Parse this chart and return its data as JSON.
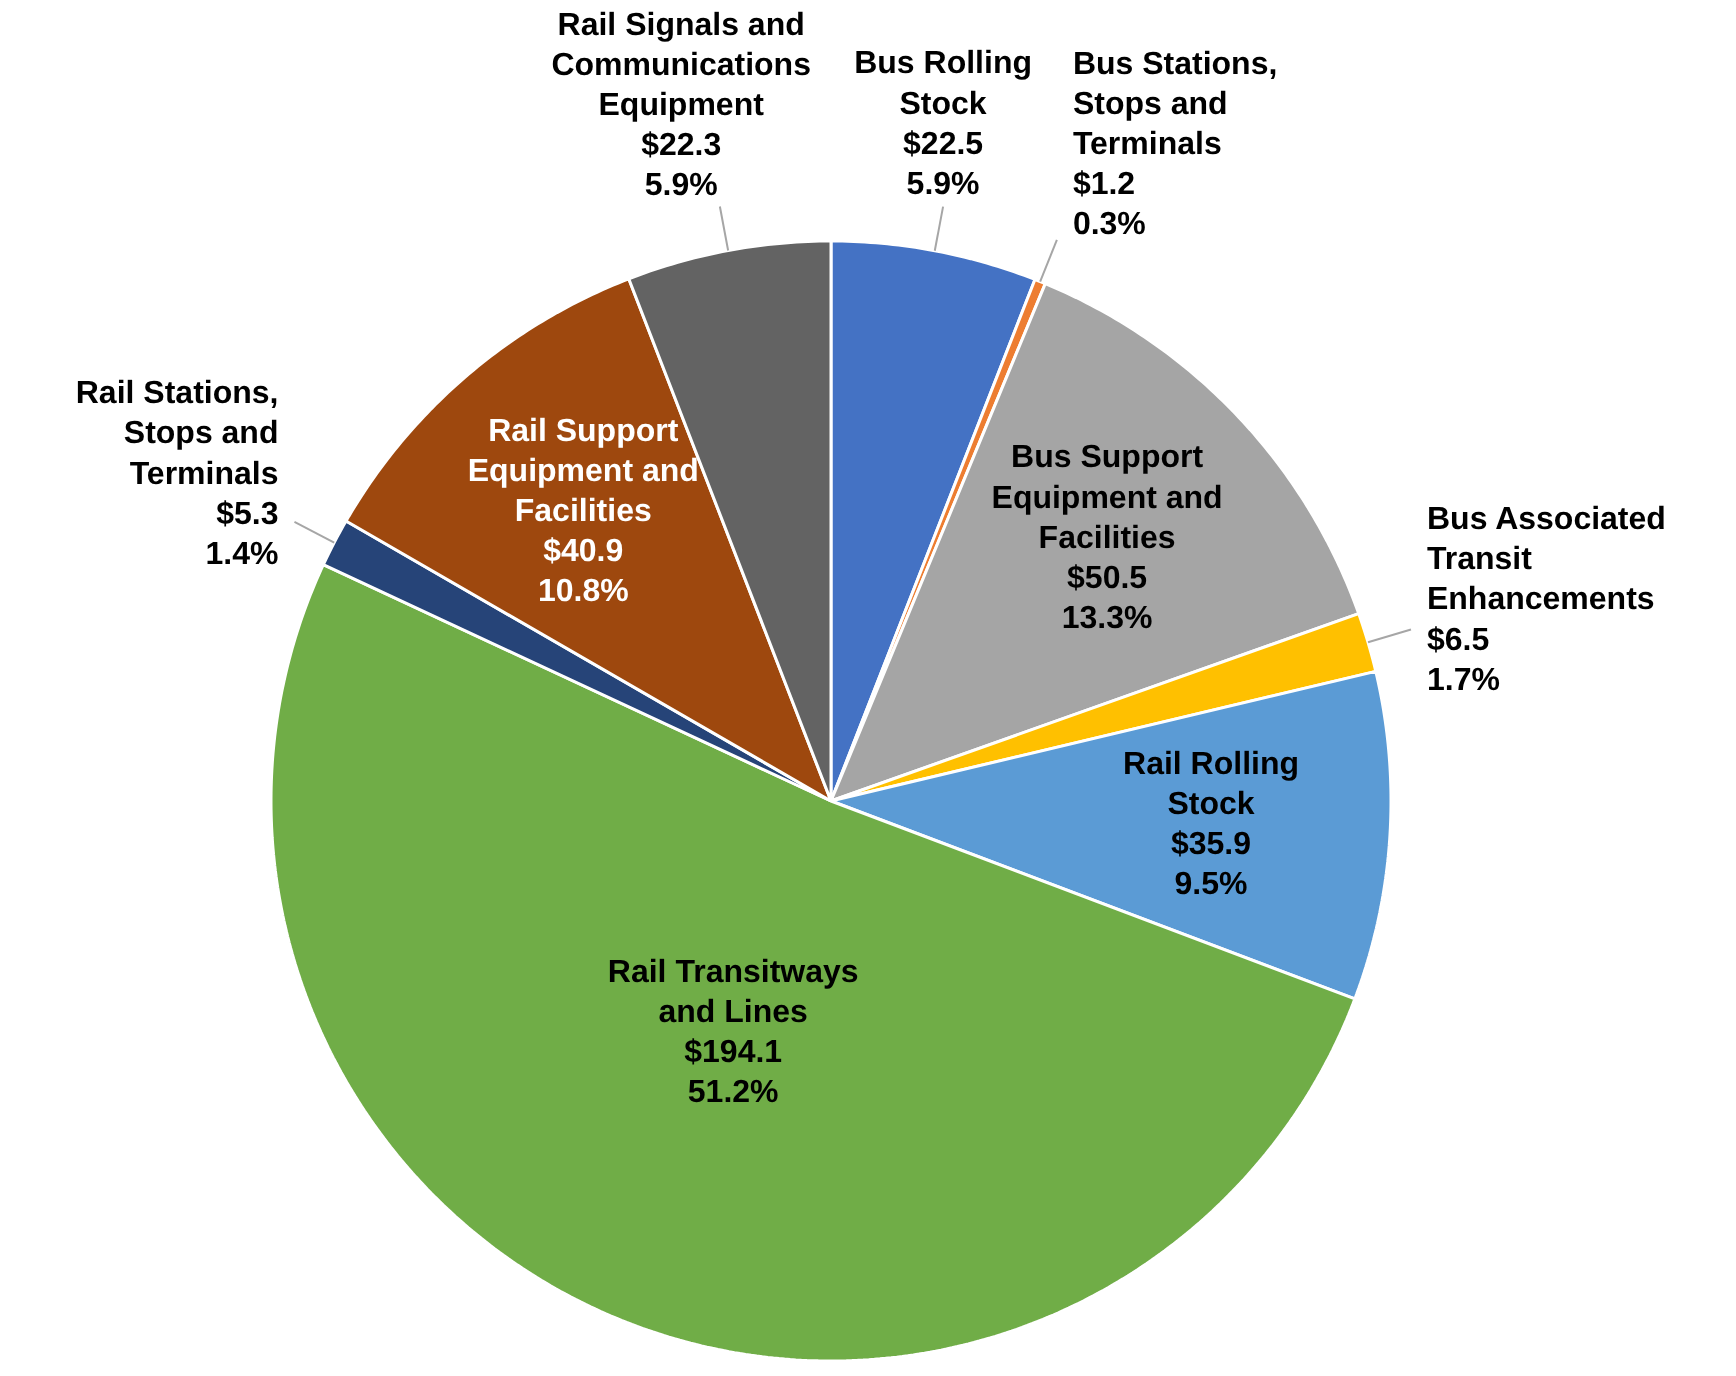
{
  "chart_data": {
    "type": "pie",
    "categories": [
      "Bus Rolling Stock",
      "Bus Stations, Stops and Terminals",
      "Bus Support Equipment and Facilities",
      "Bus Associated Transit Enhancements",
      "Rail Rolling Stock",
      "Rail Transitways and Lines",
      "Rail Stations, Stops and Terminals",
      "Rail Support Equipment and Facilities",
      "Rail Signals and Communications Equipment"
    ],
    "values": [
      22.5,
      1.2,
      50.5,
      6.5,
      35.9,
      194.1,
      5.3,
      40.9,
      22.3
    ],
    "colors": [
      "#4472c4",
      "#ed7d31",
      "#a5a5a5",
      "#ffc000",
      "#5b9bd5",
      "#70ad47",
      "#264478",
      "#9e480e",
      "#636363"
    ],
    "value_labels": [
      "$22.5\n5.9%",
      "$1.2\n0.3%",
      "$50.5\n13.3%",
      "$6.5\n1.7%",
      "$35.9\n9.5%",
      "$194.1\n51.2%",
      "$5.3\n1.4%",
      "$40.9\n10.8%",
      "$22.3\n5.9%"
    ]
  }
}
